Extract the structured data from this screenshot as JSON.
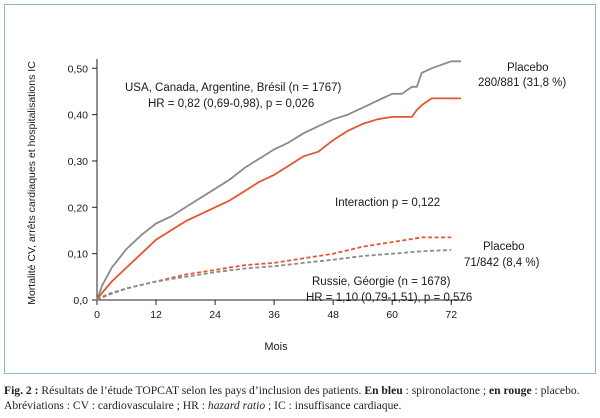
{
  "chart_data": {
    "type": "line",
    "ylabel": "Mortalité CV, arrêts cardiaques et hospitalisations IC",
    "xlabel": "Mois",
    "xlim": [
      0,
      75
    ],
    "ylim": [
      0,
      0.52
    ],
    "x_ticks": [
      0,
      12,
      24,
      36,
      48,
      60,
      72
    ],
    "x_tick_labels": [
      "0",
      "12",
      "24",
      "36",
      "48",
      "60",
      "72"
    ],
    "y_ticks": [
      0,
      0.1,
      0.2,
      0.3,
      0.4,
      0.5
    ],
    "y_tick_labels": [
      "0,0",
      "0,10",
      "0,20",
      "0,30",
      "0,40",
      "0,50"
    ],
    "colors": {
      "upper_placebo": "#8a8a8a",
      "upper_treatment": "#e2572d",
      "lower_placebo": "#e2572d",
      "lower_treatment": "#8a8a8a"
    },
    "series": [
      {
        "group": "upper",
        "style": "solid",
        "color_key": "upper_placebo",
        "x": [
          0,
          1,
          3,
          6,
          9,
          12,
          15,
          18,
          21,
          24,
          27,
          30,
          33,
          36,
          39,
          42,
          45,
          48,
          51,
          54,
          57,
          60,
          62,
          64,
          65,
          66,
          68,
          72,
          74
        ],
        "y": [
          0.0,
          0.03,
          0.07,
          0.11,
          0.14,
          0.165,
          0.18,
          0.2,
          0.22,
          0.24,
          0.26,
          0.285,
          0.305,
          0.325,
          0.34,
          0.36,
          0.375,
          0.39,
          0.4,
          0.415,
          0.43,
          0.445,
          0.445,
          0.46,
          0.46,
          0.49,
          0.5,
          0.515,
          0.515
        ]
      },
      {
        "group": "upper",
        "style": "solid",
        "color_key": "upper_treatment",
        "x": [
          0,
          1,
          3,
          6,
          9,
          12,
          15,
          18,
          21,
          24,
          27,
          30,
          33,
          36,
          39,
          42,
          45,
          48,
          51,
          54,
          57,
          60,
          62,
          64,
          65,
          66,
          68,
          72,
          74
        ],
        "y": [
          0.0,
          0.015,
          0.04,
          0.07,
          0.1,
          0.13,
          0.15,
          0.17,
          0.185,
          0.2,
          0.215,
          0.235,
          0.255,
          0.27,
          0.29,
          0.31,
          0.32,
          0.345,
          0.365,
          0.38,
          0.39,
          0.395,
          0.395,
          0.395,
          0.41,
          0.42,
          0.435,
          0.435,
          0.435
        ]
      },
      {
        "group": "lower",
        "style": "dashed",
        "color_key": "lower_placebo",
        "x": [
          0,
          2,
          6,
          12,
          18,
          24,
          30,
          36,
          42,
          48,
          54,
          60,
          66,
          72
        ],
        "y": [
          0.0,
          0.01,
          0.025,
          0.04,
          0.055,
          0.065,
          0.075,
          0.08,
          0.09,
          0.1,
          0.115,
          0.125,
          0.135,
          0.135
        ]
      },
      {
        "group": "lower",
        "style": "dashed",
        "color_key": "lower_treatment",
        "x": [
          0,
          2,
          6,
          12,
          18,
          24,
          30,
          36,
          42,
          48,
          54,
          60,
          66,
          72
        ],
        "y": [
          0.0,
          0.012,
          0.025,
          0.04,
          0.05,
          0.06,
          0.068,
          0.073,
          0.08,
          0.087,
          0.095,
          0.1,
          0.105,
          0.108
        ]
      }
    ],
    "annotations": {
      "upper_group_title": "USA, Canada, Argentine, Brésil (n = 1767)",
      "upper_group_hr": "HR = 0,82 (0,69-0,98), p = 0,026",
      "interaction": "Interaction p = 0,122",
      "lower_group_title": "Russie, Géorgie (n = 1678)",
      "lower_group_hr": "HR = 1,10 (0,79-1,51), p = 0,576",
      "upper_placebo_label": "Placebo",
      "upper_placebo_value": "280/881 (31,8 %)",
      "lower_placebo_label": "Placebo",
      "lower_placebo_value": "71/842 (8,4 %)"
    }
  },
  "caption": {
    "fig": "Fig. 2 :",
    "text1": " Résultats de l’étude TOPCAT selon les pays d’inclusion des patients. ",
    "en_bleu": "En bleu",
    "text2": " : spironolactone ; ",
    "en_rouge": "en rouge",
    "text3": " : placebo. Abréviations : CV : cardiovasculaire ; HR : ",
    "hazard": "hazard ratio",
    "text4": " ; IC : insuffisance cardiaque."
  }
}
